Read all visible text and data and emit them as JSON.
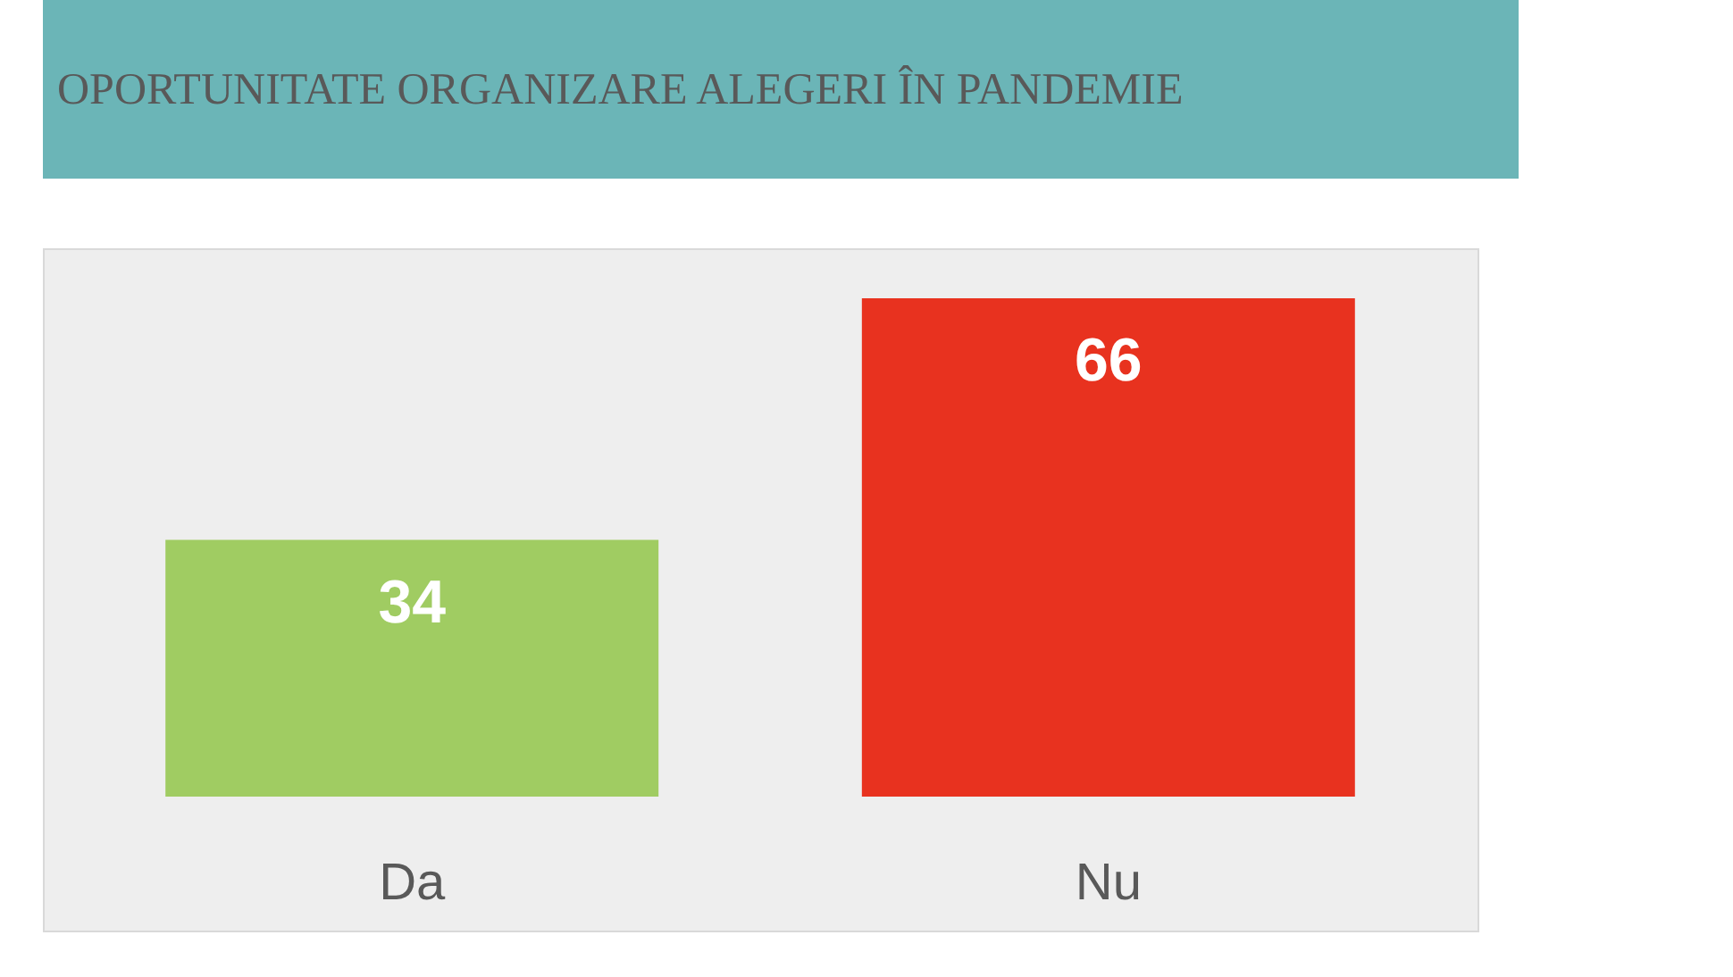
{
  "chart_data": {
    "type": "bar",
    "title": "OPORTUNITATE ORGANIZARE ALEGERI ÎN PANDEMIE",
    "categories": [
      "Da",
      "Nu"
    ],
    "values": [
      34,
      66
    ],
    "colors": [
      "#a0cc62",
      "#e8321f"
    ],
    "data_labels": true
  }
}
